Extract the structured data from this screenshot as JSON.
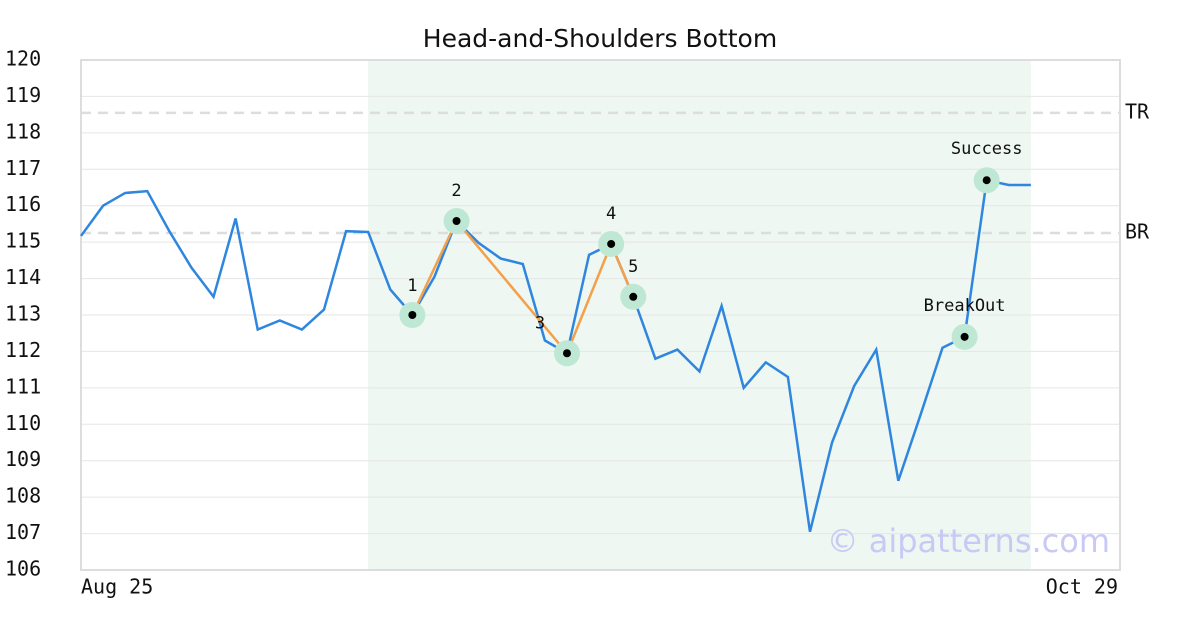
{
  "chart_data": {
    "type": "line",
    "title": "Head-and-Shoulders Bottom",
    "categories": [
      "Aug 25",
      null,
      null,
      null,
      null,
      null,
      null,
      null,
      null,
      null,
      null,
      null,
      null,
      null,
      null,
      null,
      null,
      null,
      null,
      null,
      null,
      null,
      null,
      null,
      null,
      null,
      null,
      null,
      null,
      null,
      null,
      null,
      null,
      null,
      null,
      null,
      null,
      null,
      null,
      null,
      null,
      null,
      null,
      "Oct 29"
    ],
    "series": [
      {
        "color": "#2e86de",
        "values": [
          115.17,
          116.0,
          116.35,
          116.4,
          115.3,
          114.3,
          113.5,
          115.65,
          112.6,
          112.85,
          112.6,
          113.15,
          115.3,
          115.28,
          113.7,
          113.0,
          114.05,
          115.58,
          114.98,
          114.55,
          114.4,
          112.3,
          111.95,
          114.65,
          114.95,
          113.5,
          111.8,
          112.05,
          111.45,
          113.25,
          111.0,
          111.7,
          111.3,
          107.05,
          109.5,
          111.05,
          112.05,
          108.45,
          110.25,
          112.1,
          112.4,
          116.7,
          116.57,
          116.57
        ]
      }
    ],
    "ylim": [
      106,
      120
    ],
    "yticks": [
      106,
      107,
      108,
      109,
      110,
      111,
      112,
      113,
      114,
      115,
      116,
      117,
      118,
      119,
      120
    ],
    "grid": true,
    "pattern_range": [
      13,
      43
    ],
    "pattern_color": "#f4a04a",
    "pattern_points": [
      {
        "label": "1",
        "index": 15
      },
      {
        "label": "2",
        "index": 17
      },
      {
        "label": "3",
        "index": 22
      },
      {
        "label": "4",
        "index": 24
      },
      {
        "label": "5",
        "index": 25
      }
    ],
    "signals": [
      {
        "label": "BreakOut",
        "index": 40
      },
      {
        "label": "Success",
        "index": 41
      }
    ],
    "levels": [
      {
        "label": "TR",
        "value": 118.55
      },
      {
        "label": "BR",
        "value": 115.25
      }
    ],
    "watermark": "© aipatterns.com"
  }
}
